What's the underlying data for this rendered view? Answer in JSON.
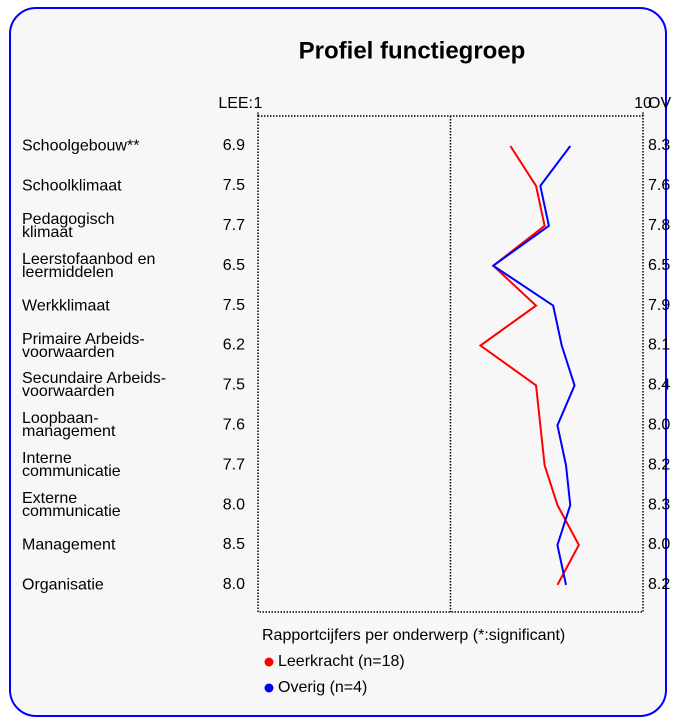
{
  "chart_data": {
    "type": "profile_line",
    "title": "Profiel functiegroep",
    "categories": [
      "Schoolgebouw**",
      "Schoolklimaat",
      "Pedagogisch\nklimaat",
      "Leerstofaanbod en\nleermiddelen",
      "Werkklimaat",
      "Primaire Arbeids-\nvoorwaarden",
      "Secundaire Arbeids-\nvoorwaarden",
      "Loopbaan-\nmanagement",
      "Interne\ncommunicatie",
      "Externe\ncommunicatie",
      "Management",
      "Organisatie"
    ],
    "legend_title": "Rapportcijfers per onderwerp (*:significant)",
    "series": [
      {
        "name": "Leerkracht (n=18)",
        "column_label": "LEE:",
        "color": "#ff0000",
        "values": [
          6.9,
          7.5,
          7.7,
          6.5,
          7.5,
          6.2,
          7.5,
          7.6,
          7.7,
          8.0,
          8.5,
          8.0
        ],
        "value_labels": [
          "6.9",
          "7.5",
          "7.7",
          "6.5",
          "7.5",
          "6.2",
          "7.5",
          "7.6",
          "7.7",
          "8.0",
          "8.5",
          "8.0"
        ]
      },
      {
        "name": "Overig (n=4)",
        "column_label": "OV",
        "color": "#0000ff",
        "values": [
          8.3,
          7.6,
          7.8,
          6.5,
          7.9,
          8.1,
          8.4,
          8.0,
          8.2,
          8.3,
          8.0,
          8.2
        ],
        "value_labels": [
          "8.3",
          "7.6",
          "7.8",
          "6.5",
          "7.9",
          "8.1",
          "8.4",
          "8.0",
          "8.2",
          "8.3",
          "8.0",
          "8.2"
        ]
      }
    ],
    "xlim": [
      1,
      10
    ],
    "xticks": [
      1,
      10
    ]
  }
}
